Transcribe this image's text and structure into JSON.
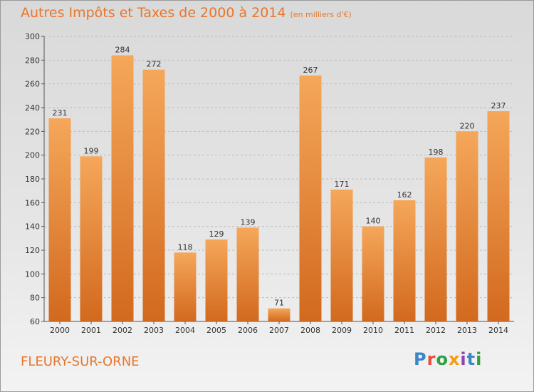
{
  "header": {
    "title": "Autres Impôts et Taxes de 2000 à 2014",
    "subtitle": "(en milliers d'€)"
  },
  "footer": {
    "city": "FLEURY-SUR-ORNE",
    "logo": "Proxiti"
  },
  "colors": {
    "bar_top": "#f5a75a",
    "bar_bottom": "#d2691e",
    "accent": "#e8762b"
  },
  "chart_data": {
    "type": "bar",
    "title": "Autres Impôts et Taxes de 2000 à 2014",
    "subtitle": "(en milliers d'€)",
    "categories": [
      "2000",
      "2001",
      "2002",
      "2003",
      "2004",
      "2005",
      "2006",
      "2007",
      "2008",
      "2009",
      "2010",
      "2011",
      "2012",
      "2013",
      "2014"
    ],
    "values": [
      231,
      199,
      284,
      272,
      118,
      129,
      139,
      71,
      267,
      171,
      140,
      162,
      198,
      220,
      237
    ],
    "ylim": [
      60,
      300
    ],
    "yticks": [
      60,
      80,
      100,
      120,
      140,
      160,
      180,
      200,
      220,
      240,
      260,
      280,
      300
    ],
    "grid": true,
    "data_labels": true
  }
}
